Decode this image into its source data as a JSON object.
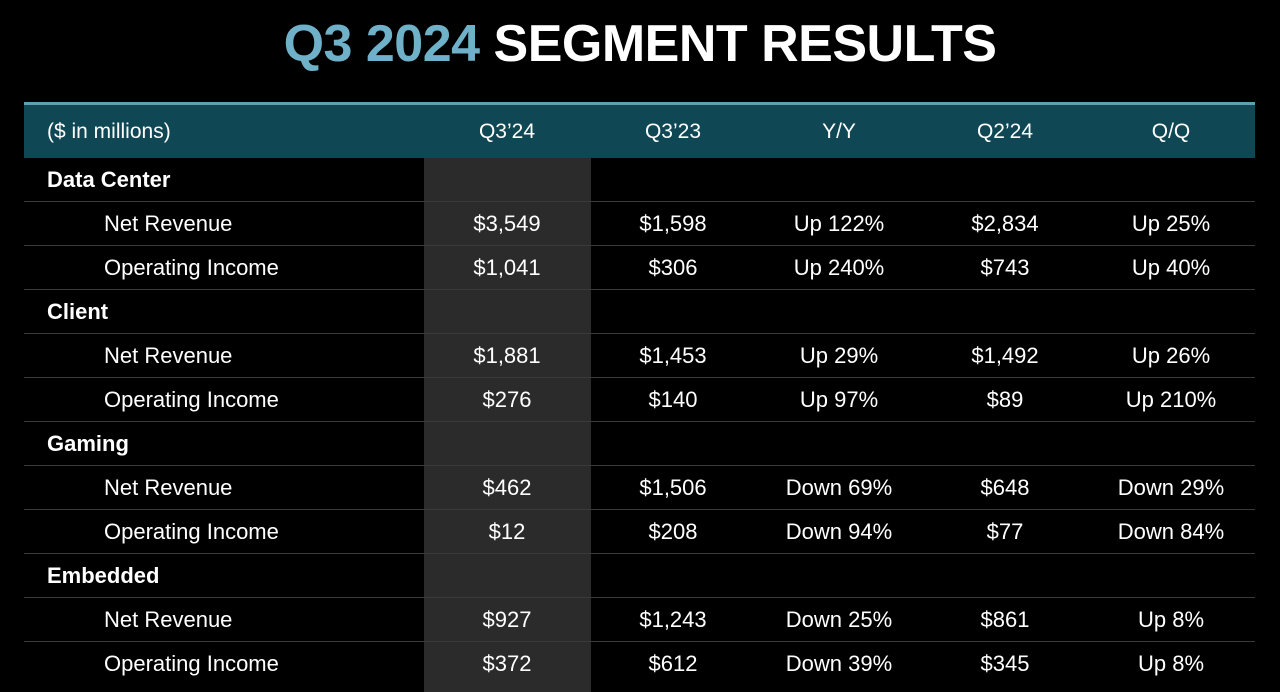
{
  "title": {
    "accent": "Q3 2024",
    "main": "SEGMENT RESULTS"
  },
  "colors": {
    "accent": "#6fb1c8",
    "header_bg": "#0f4755",
    "highlight_col": "#2b2b2b",
    "background": "#000000"
  },
  "table": {
    "header": {
      "label": "($ in millions)",
      "columns": [
        "Q3’24",
        "Q3’23",
        "Y/Y",
        "Q2’24",
        "Q/Q"
      ]
    },
    "sections": [
      {
        "name": "Data Center",
        "rows": [
          {
            "label": "Net Revenue",
            "values": [
              "$3,549",
              "$1,598",
              "Up 122%",
              "$2,834",
              "Up 25%"
            ]
          },
          {
            "label": "Operating Income",
            "values": [
              "$1,041",
              "$306",
              "Up 240%",
              "$743",
              "Up 40%"
            ]
          }
        ]
      },
      {
        "name": "Client",
        "rows": [
          {
            "label": "Net Revenue",
            "values": [
              "$1,881",
              "$1,453",
              "Up 29%",
              "$1,492",
              "Up 26%"
            ]
          },
          {
            "label": "Operating Income",
            "values": [
              "$276",
              "$140",
              "Up 97%",
              "$89",
              "Up 210%"
            ]
          }
        ]
      },
      {
        "name": "Gaming",
        "rows": [
          {
            "label": "Net Revenue",
            "values": [
              "$462",
              "$1,506",
              "Down 69%",
              "$648",
              "Down 29%"
            ]
          },
          {
            "label": "Operating Income",
            "values": [
              "$12",
              "$208",
              "Down 94%",
              "$77",
              "Down 84%"
            ]
          }
        ]
      },
      {
        "name": "Embedded",
        "rows": [
          {
            "label": "Net Revenue",
            "values": [
              "$927",
              "$1,243",
              "Down 25%",
              "$861",
              "Up 8%"
            ]
          },
          {
            "label": "Operating Income",
            "values": [
              "$372",
              "$612",
              "Down 39%",
              "$345",
              "Up 8%"
            ]
          }
        ]
      }
    ]
  }
}
